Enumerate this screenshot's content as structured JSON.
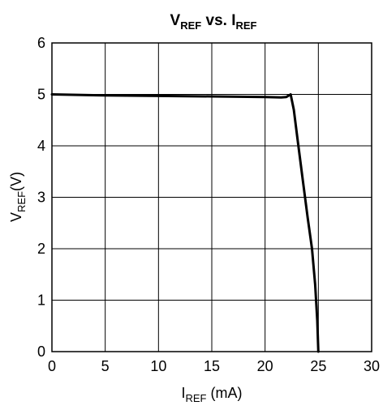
{
  "chart_data": {
    "type": "line",
    "title": {
      "main": "V",
      "main_sub": "REF",
      "vs": " vs. I",
      "vs_sub": "REF"
    },
    "xlabel": {
      "main": "I",
      "sub": "REF",
      "unit": " (mA)"
    },
    "ylabel": {
      "main": "V",
      "sub": "REF",
      "unit": "(V)"
    },
    "xlim": [
      0,
      30
    ],
    "ylim": [
      0,
      6
    ],
    "xticks": [
      0,
      5,
      10,
      15,
      20,
      25,
      30
    ],
    "yticks": [
      0,
      1,
      2,
      3,
      4,
      5,
      6
    ],
    "grid": true,
    "line_color": "#000000",
    "series": [
      {
        "x": [
          0,
          5,
          10,
          15,
          20,
          21.5,
          22.0,
          22.4,
          22.7,
          23.0,
          23.5,
          24.0,
          24.4,
          24.7,
          24.9,
          25.0
        ],
        "y": [
          5.0,
          4.98,
          4.97,
          4.96,
          4.95,
          4.94,
          4.95,
          5.0,
          4.7,
          4.2,
          3.4,
          2.6,
          2.0,
          1.3,
          0.6,
          0.0
        ]
      }
    ]
  }
}
